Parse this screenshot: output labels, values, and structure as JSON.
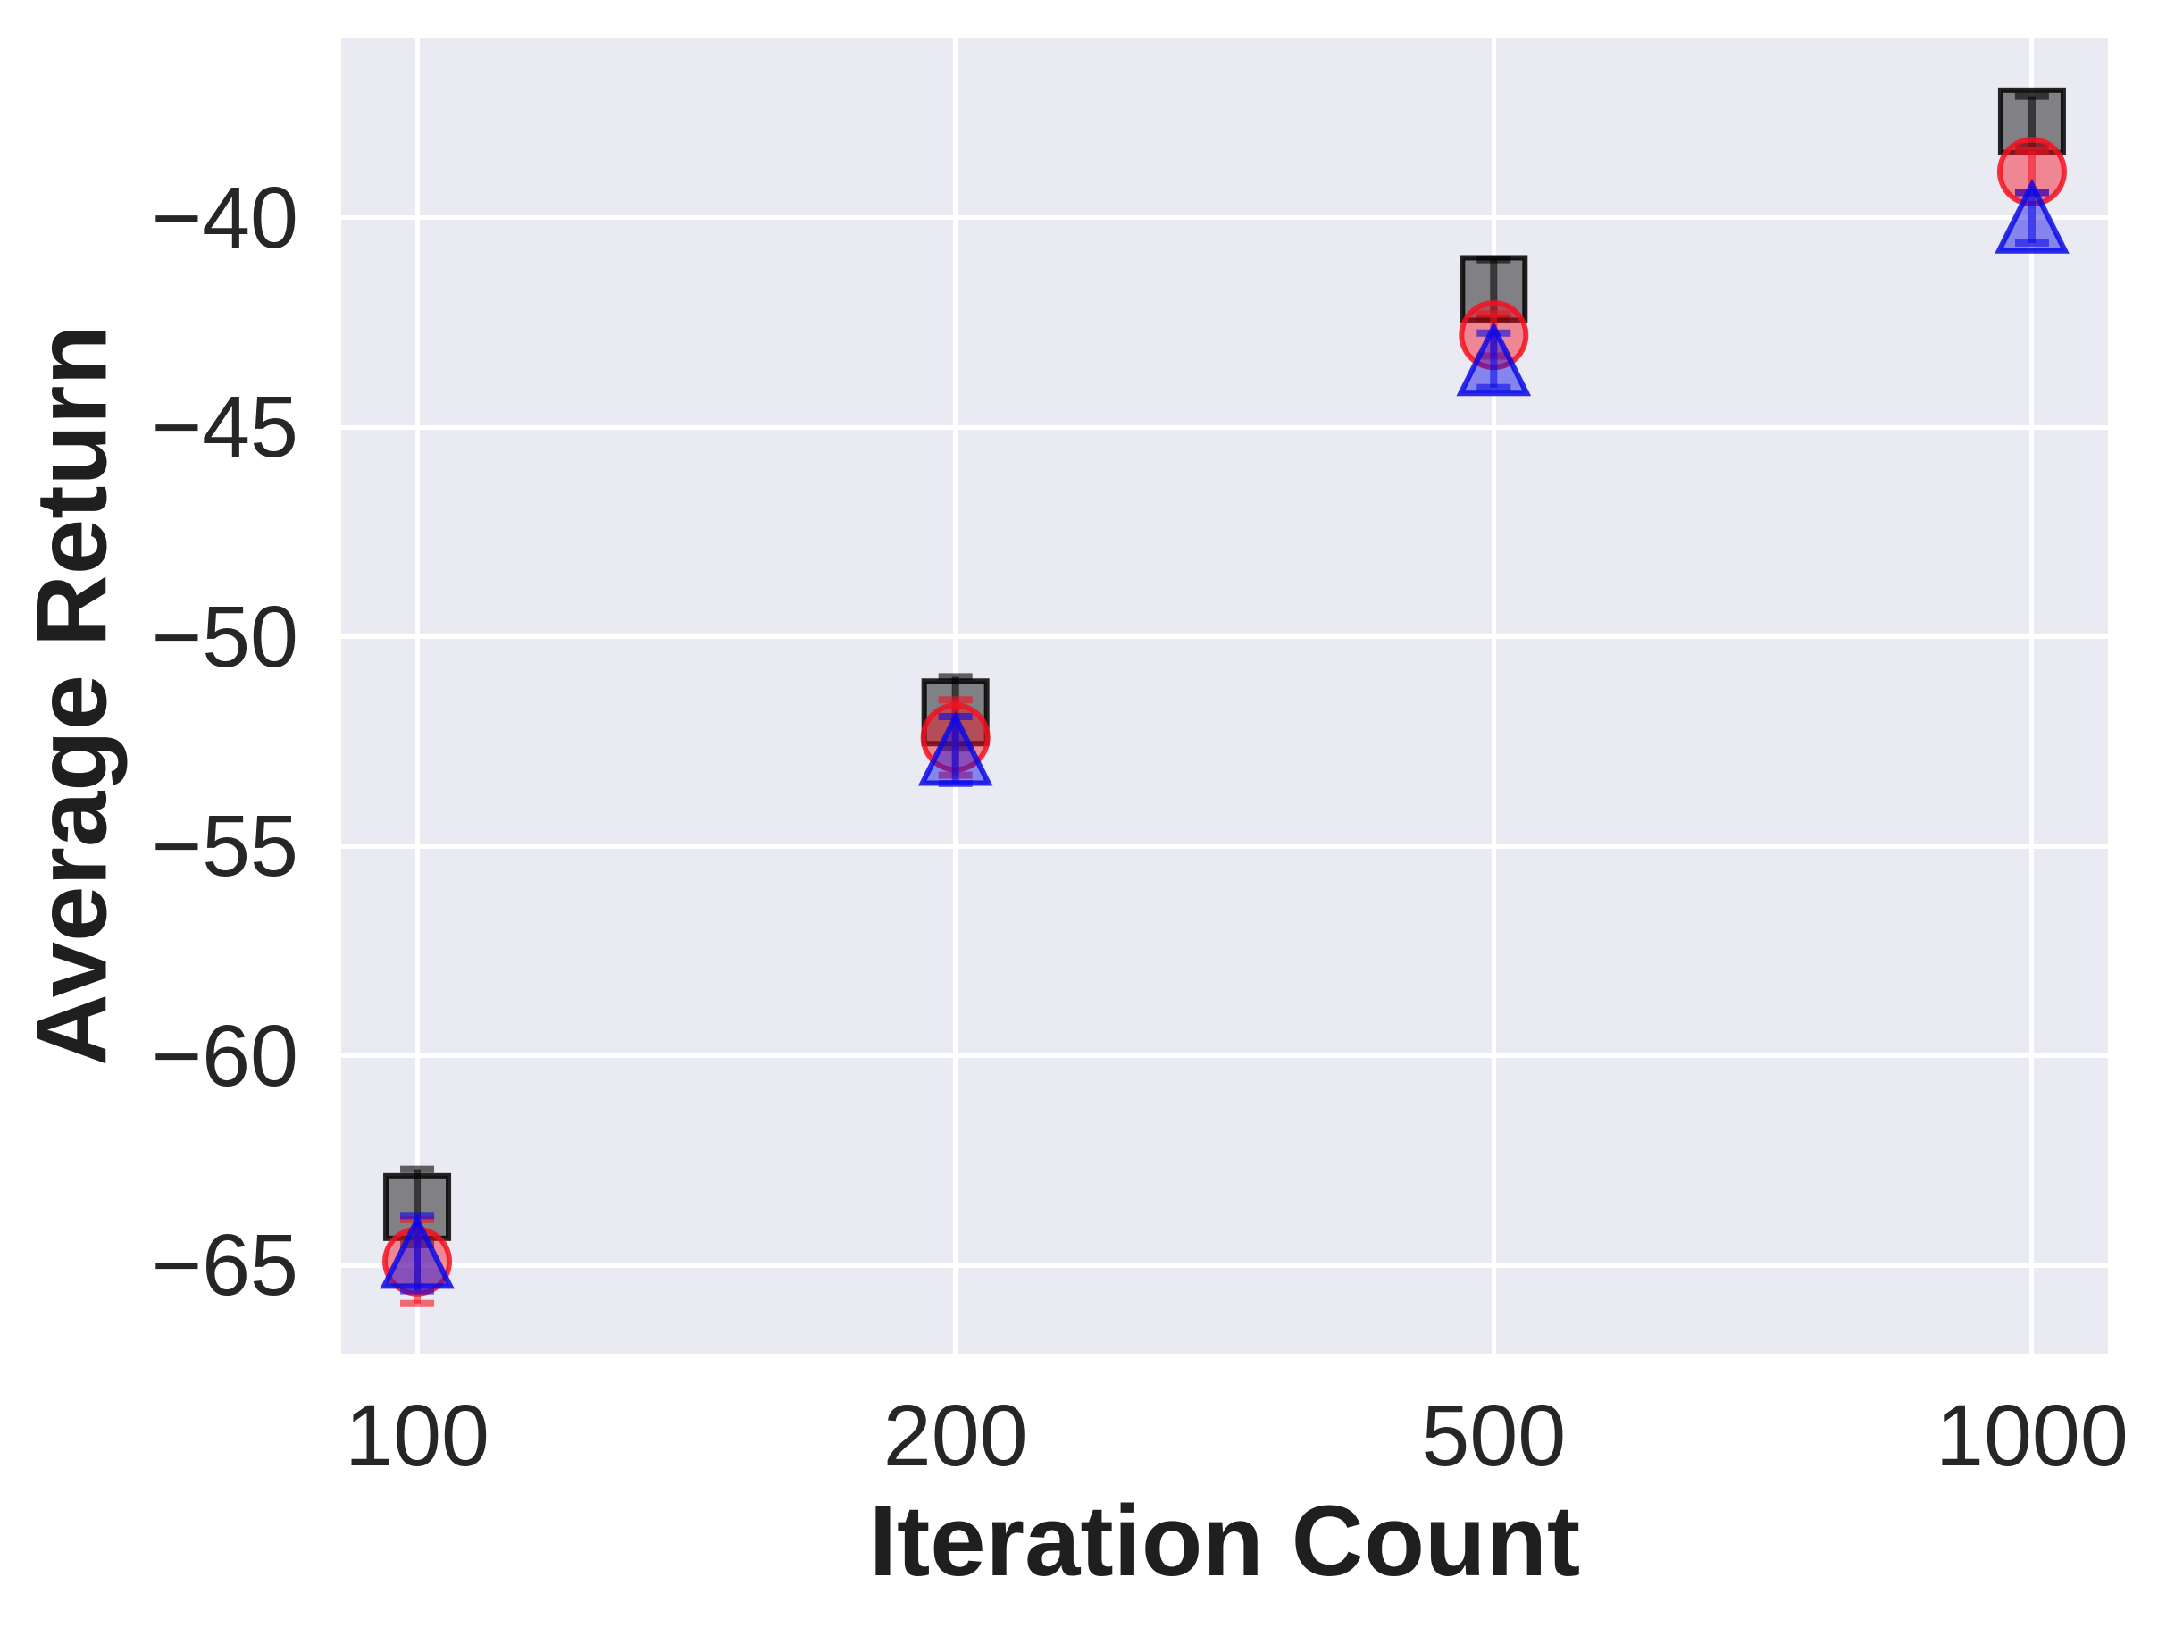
{
  "figure": {
    "background": "#ffffff",
    "plot_background": "#eaeaf2",
    "grid_color": "#ffffff",
    "tick_color": "#262626",
    "label_color": "#1f1f1f"
  },
  "chart_data": {
    "type": "scatter",
    "title": "",
    "xlabel": "Iteration Count",
    "ylabel": "Average Return",
    "categories": [
      "100",
      "200",
      "500",
      "1000"
    ],
    "yticks": [
      -40,
      -45,
      -50,
      -55,
      -60,
      -65
    ],
    "ylim": [
      -67.1,
      -35.7
    ],
    "grid": true,
    "legend": false,
    "series": [
      {
        "name": "black-squares",
        "marker": "square",
        "color": "#000000",
        "values": [
          -63.6,
          -51.8,
          -41.7,
          -37.7
        ],
        "errors": [
          0.9,
          0.85,
          0.7,
          0.6
        ]
      },
      {
        "name": "red-circles",
        "marker": "circle",
        "color": "#f5101e",
        "values": [
          -64.9,
          -52.4,
          -42.8,
          -38.9
        ],
        "errors": [
          1.0,
          0.9,
          0.5,
          0.5
        ]
      },
      {
        "name": "blue-triangles",
        "marker": "triangle-up",
        "color": "#0a0ae6",
        "values": [
          -64.7,
          -52.7,
          -43.4,
          -40.0
        ],
        "errors": [
          0.9,
          0.8,
          0.65,
          0.6
        ]
      }
    ]
  }
}
